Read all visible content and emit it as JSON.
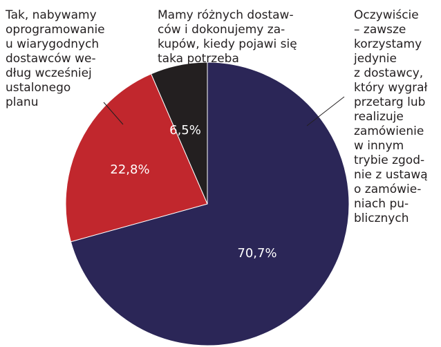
{
  "chart_data": {
    "type": "pie",
    "categories": [
      [
        "Oczywiście",
        "– zawsze",
        "korzystamy",
        "jedynie",
        "z dostawcy,",
        "który wygrał",
        "przetarg lub",
        "realizuje",
        "zamówienie",
        "w innym",
        "trybie zgod-",
        "nie z ustawą",
        "o zamówie-",
        "niach pu-",
        "blicznych"
      ],
      [
        "Tak, nabywamy",
        "oprogramowanie",
        "u wiarygodnych",
        "dostawców we-",
        "dług wcześniej",
        "ustalonego",
        "planu"
      ],
      [
        "Mamy różnych dostaw-",
        "ców i dokonujemy za-",
        "kupów, kiedy pojawi się",
        "taka potrzeba"
      ]
    ],
    "values": [
      70.7,
      22.8,
      6.5
    ],
    "value_labels": [
      "70,7%",
      "22,8%",
      "6,5%"
    ],
    "colors": [
      "#2b2657",
      "#c1272d",
      "#231f20"
    ]
  }
}
